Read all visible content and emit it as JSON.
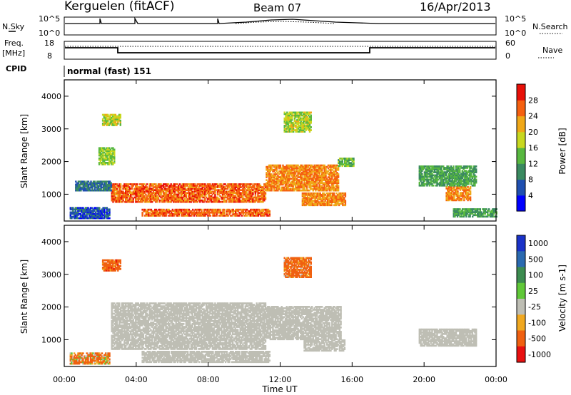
{
  "header": {
    "station": "Kerguelen (fitACF)",
    "beam": "Beam 07",
    "date": "16/Apr/2013"
  },
  "top_panels": {
    "nsky_label": "N.Sky",
    "nsky_ticks": [
      "10^5",
      "10^0"
    ],
    "nsearch_label": "N.Search",
    "nsearch_ticks": [
      "10^5",
      "10^0"
    ],
    "freq_label_1": "Freq.",
    "freq_label_2": "[MHz]",
    "freq_ticks": [
      "18",
      "8"
    ],
    "nave_label": "Nave",
    "nave_ticks": [
      "60",
      "0"
    ],
    "cpid_label": "CPID",
    "cpid_value": "normal (fast) 151"
  },
  "chart_data": [
    {
      "type": "heatmap",
      "title": "",
      "ylabel": "Slant Range [km]",
      "xlabel": "",
      "x_unit": "hours UT",
      "xlim": [
        0,
        24
      ],
      "ylim": [
        180,
        4500
      ],
      "yticks": [
        "1000",
        "2000",
        "3000",
        "4000"
      ],
      "colorbar": {
        "label": "Power [dB]",
        "ticks": [
          "4",
          "8",
          "12",
          "16",
          "20",
          "24",
          "28"
        ],
        "range": [
          0,
          32
        ],
        "colors": [
          "#0000ff",
          "#1f4fb0",
          "#3a8a60",
          "#58b840",
          "#c8d820",
          "#f0a818",
          "#f56010",
          "#e81008"
        ]
      },
      "echo_regions": [
        {
          "t0": 2.6,
          "t1": 11.2,
          "r0": 750,
          "r1": 1300,
          "level": 26
        },
        {
          "t0": 11.2,
          "t1": 15.2,
          "r0": 1100,
          "r1": 1900,
          "level": 24
        },
        {
          "t0": 15.2,
          "t1": 16.1,
          "r0": 1850,
          "r1": 2100,
          "level": 14
        },
        {
          "t0": 4.3,
          "t1": 11.4,
          "r0": 330,
          "r1": 530,
          "level": 26
        },
        {
          "t0": 13.2,
          "t1": 15.6,
          "r0": 650,
          "r1": 1050,
          "level": 24
        },
        {
          "t0": 21.2,
          "t1": 22.6,
          "r0": 800,
          "r1": 1250,
          "level": 24
        },
        {
          "t0": 19.7,
          "t1": 22.9,
          "r0": 1250,
          "r1": 1850,
          "level": 12
        },
        {
          "t0": 21.6,
          "t1": 24.0,
          "r0": 300,
          "r1": 560,
          "level": 12
        },
        {
          "t0": 2.1,
          "t1": 3.1,
          "r0": 3100,
          "r1": 3450,
          "level": 18
        },
        {
          "t0": 12.2,
          "t1": 13.7,
          "r0": 2900,
          "r1": 3500,
          "level": 17
        },
        {
          "t0": 1.9,
          "t1": 2.8,
          "r0": 1900,
          "r1": 2400,
          "level": 16
        },
        {
          "t0": 0.3,
          "t1": 2.5,
          "r0": 250,
          "r1": 600,
          "level": 6
        },
        {
          "t0": 0.6,
          "t1": 2.6,
          "r0": 1100,
          "r1": 1400,
          "level": 8
        }
      ]
    },
    {
      "type": "heatmap",
      "title": "",
      "ylabel": "Slant Range [km]",
      "xlabel": "Time UT",
      "x_unit": "hours UT",
      "xlim": [
        0,
        24
      ],
      "ylim": [
        180,
        4500
      ],
      "xticks": [
        "00:00",
        "04:00",
        "08:00",
        "12:00",
        "16:00",
        "20:00",
        "00:00"
      ],
      "yticks": [
        "1000",
        "2000",
        "3000",
        "4000"
      ],
      "colorbar": {
        "label": "Velocity [m s-1]",
        "ticks": [
          "1000",
          "500",
          "100",
          "25",
          "-25",
          "-100",
          "-500",
          "-1000"
        ],
        "colors": [
          "#1a32c8",
          "#2a6ab0",
          "#3c8c50",
          "#60c838",
          "#bebeb4",
          "#f0a820",
          "#f06010",
          "#e81010"
        ]
      },
      "echo_regions": [
        {
          "t0": 2.6,
          "t1": 11.2,
          "r0": 700,
          "r1": 2100,
          "kind": "groundscatter"
        },
        {
          "t0": 11.2,
          "t1": 15.4,
          "r0": 1000,
          "r1": 2000,
          "kind": "groundscatter"
        },
        {
          "t0": 4.3,
          "t1": 11.4,
          "r0": 300,
          "r1": 620,
          "kind": "groundscatter"
        },
        {
          "t0": 13.3,
          "t1": 15.6,
          "r0": 650,
          "r1": 1000,
          "kind": "groundscatter"
        },
        {
          "t0": 19.7,
          "t1": 22.9,
          "r0": 800,
          "r1": 1300,
          "kind": "groundscatter"
        },
        {
          "t0": 2.1,
          "t1": 3.1,
          "r0": 3100,
          "r1": 3450,
          "kind": "velocity",
          "value": -300
        },
        {
          "t0": 12.2,
          "t1": 13.7,
          "r0": 2900,
          "r1": 3500,
          "kind": "velocity",
          "value": -250
        },
        {
          "t0": 0.3,
          "t1": 2.5,
          "r0": 250,
          "r1": 600,
          "kind": "velocity",
          "value": -150
        }
      ]
    }
  ],
  "colors": {
    "axis": "#000000",
    "background": "#ffffff"
  }
}
